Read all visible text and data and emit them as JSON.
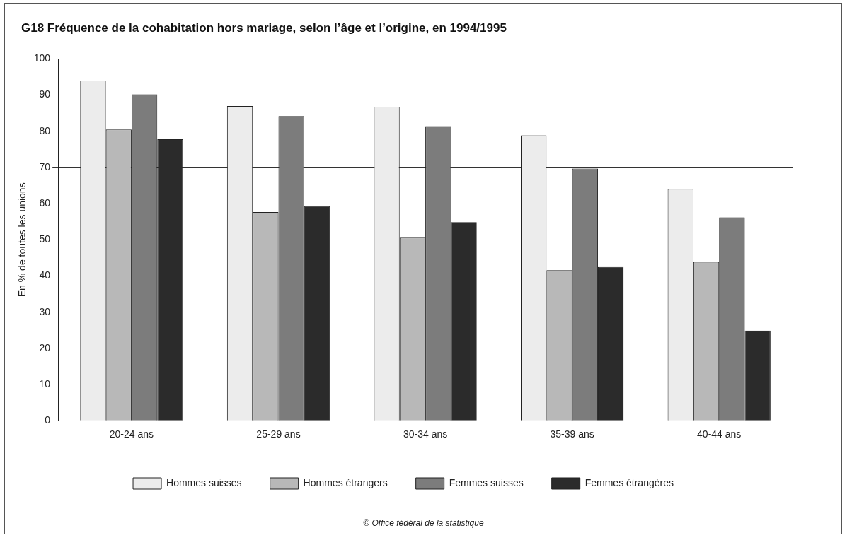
{
  "chart_data": {
    "type": "bar",
    "title": "G18  Fréquence de la cohabitation hors mariage, selon l’âge et l’origine, en 1994/1995",
    "ylabel": "En % de toutes les unions",
    "categories": [
      "20-24 ans",
      "25-29 ans",
      "30-34 ans",
      "35-39 ans",
      "40-44 ans"
    ],
    "series": [
      {
        "name": "Hommes suisses",
        "color": "#ececec",
        "values": [
          94,
          87,
          86.8,
          78.9,
          64.1
        ]
      },
      {
        "name": "Hommes étrangers",
        "color": "#b8b8b8",
        "values": [
          80.5,
          57.7,
          50.6,
          41.6,
          43.9
        ]
      },
      {
        "name": "Femmes suisses",
        "color": "#7c7c7c",
        "values": [
          90.2,
          84.2,
          81.4,
          69.7,
          56.2
        ]
      },
      {
        "name": "Femmes étrangères",
        "color": "#2b2b2b",
        "values": [
          77.8,
          59.4,
          54.9,
          42.5,
          24.9
        ]
      }
    ],
    "ylim": [
      0,
      100
    ],
    "yticks": [
      0,
      10,
      20,
      30,
      40,
      50,
      60,
      70,
      80,
      90,
      100
    ],
    "grid": "y",
    "legend": "bottom",
    "annotations": [
      "© Office fédéral de la statistique"
    ]
  }
}
